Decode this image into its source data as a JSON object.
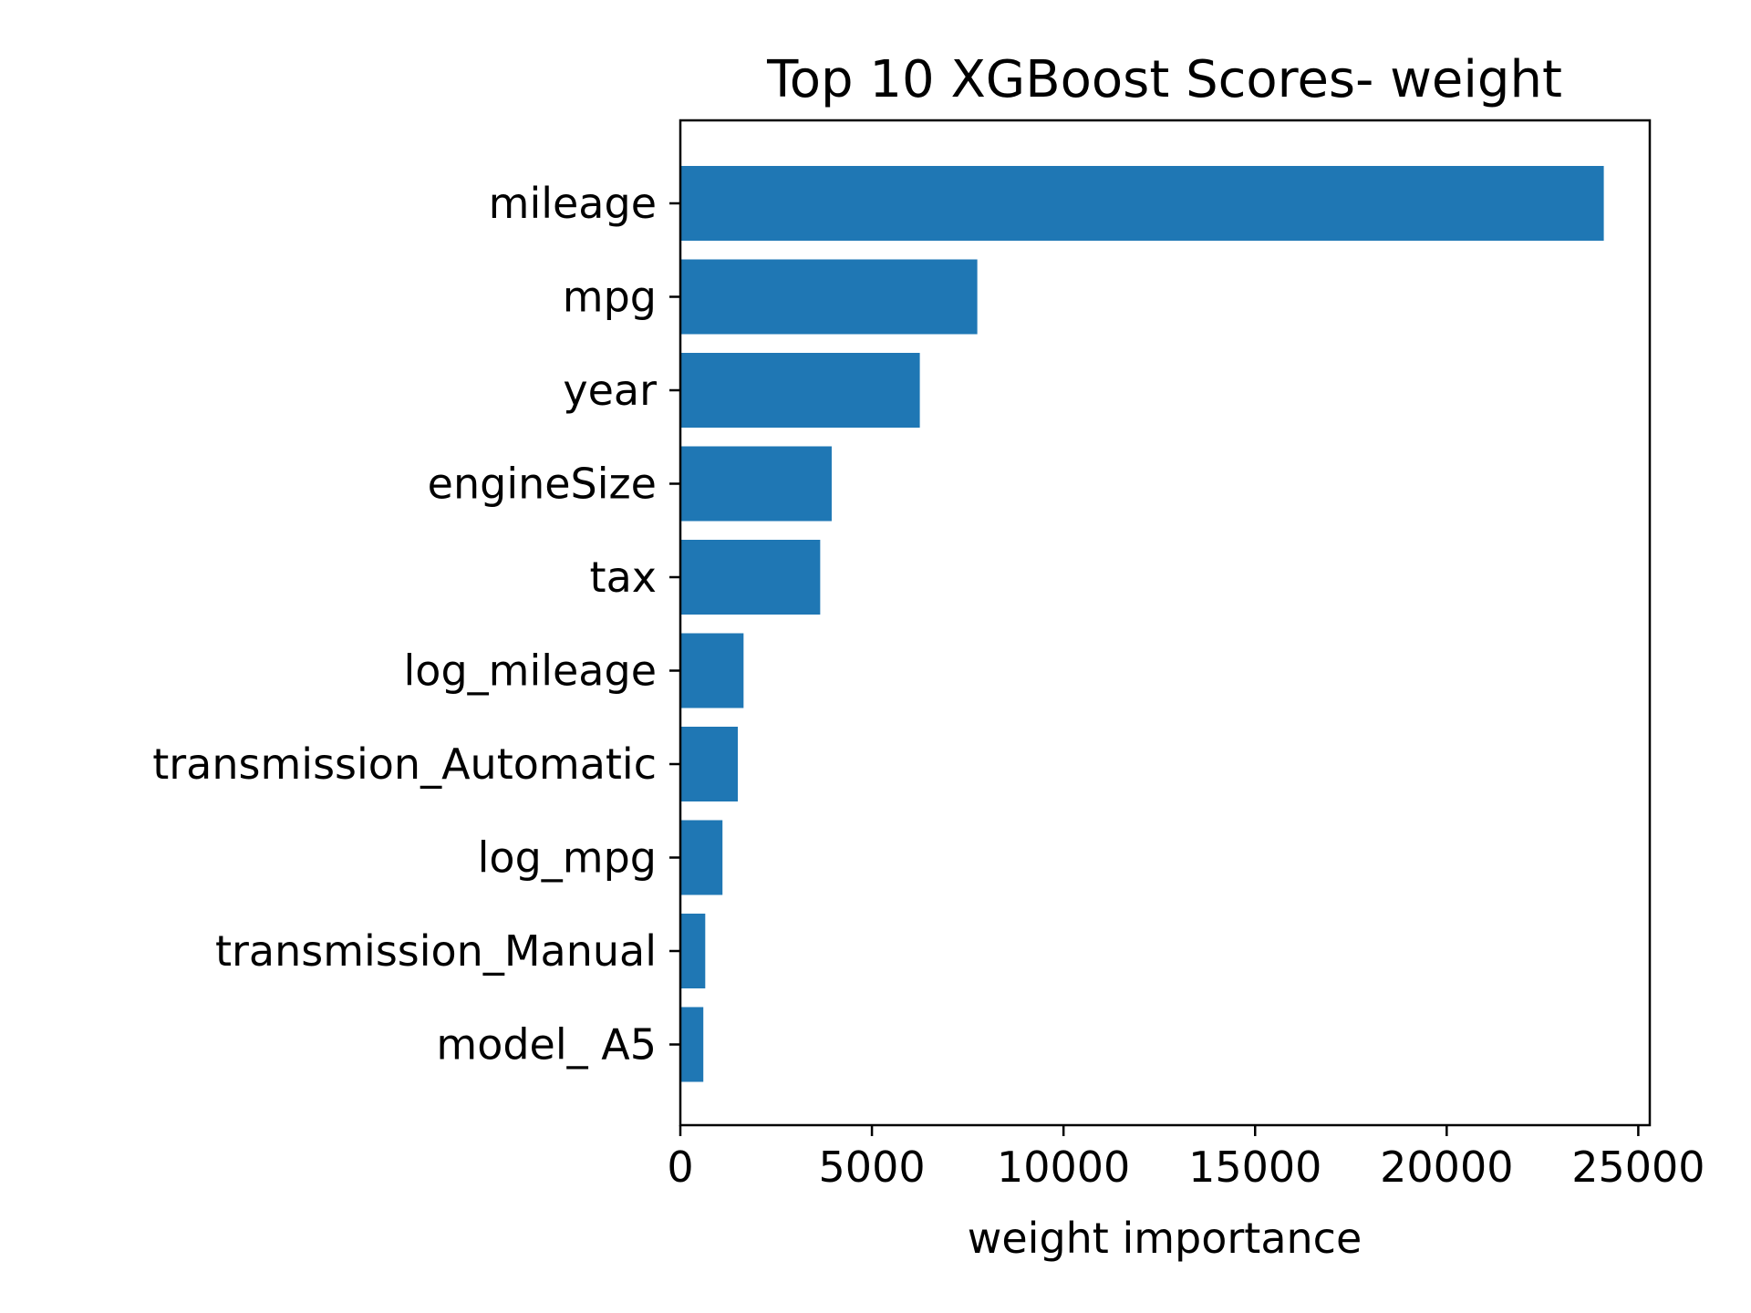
{
  "chart_data": {
    "type": "bar",
    "orientation": "horizontal",
    "title": "Top 10 XGBoost Scores- weight",
    "xlabel": "weight importance",
    "ylabel": "",
    "categories": [
      "mileage",
      "mpg",
      "year",
      "engineSize",
      "tax",
      "log_mileage",
      "transmission_Automatic",
      "log_mpg",
      "transmission_Manual",
      "model_ A5"
    ],
    "values": [
      24100,
      7750,
      6250,
      3950,
      3650,
      1650,
      1500,
      1100,
      650,
      600
    ],
    "xlim": [
      0,
      25300
    ],
    "xticks": [
      0,
      5000,
      10000,
      15000,
      20000,
      25000
    ],
    "xtick_labels": [
      "0",
      "5000",
      "10000",
      "15000",
      "20000",
      "25000"
    ],
    "bar_color": "#1f77b4",
    "grid": false,
    "legend": "none"
  }
}
